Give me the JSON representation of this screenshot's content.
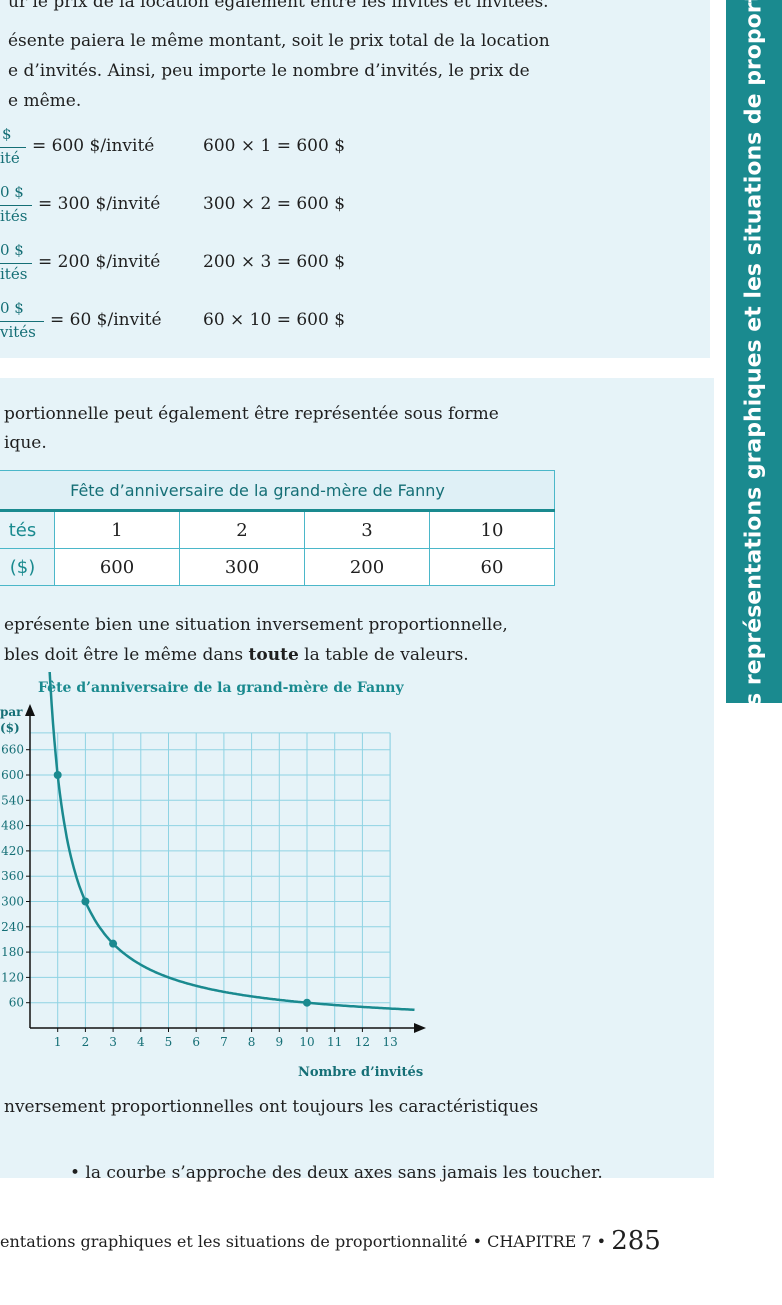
{
  "side_tab": "Les représentations graphiques et les situations de proportio",
  "top_text": {
    "line0": "ur le prix de la location également entre les invités et invitées.",
    "line1": "ésente paiera le même montant, soit le prix total de la location",
    "line2": "e d’invités. Ainsi, peu importe le nombre d’invités, le prix de",
    "line3": "e même."
  },
  "calculations": [
    {
      "num": "$",
      "den": "ité",
      "quotient": "= 600 $/invité",
      "product": "600 × 1 = 600 $"
    },
    {
      "num": "0 $",
      "den": "ités",
      "quotient": "= 300 $/invité",
      "product": "300 × 2 = 600 $"
    },
    {
      "num": "0 $",
      "den": "ités",
      "quotient": "= 200 $/invité",
      "product": "200 × 3 = 600 $"
    },
    {
      "num": "0 $",
      "den": "vités",
      "quotient": "= 60 $/invité",
      "product": "60 × 10 = 600 $"
    }
  ],
  "middle_text": {
    "line1": "portionnelle peut également être représentée sous forme",
    "line2": "ique."
  },
  "table": {
    "caption": "Fête d’anniversaire de la grand-mère de Fanny",
    "row1_label": "tés",
    "row2_label": "($)",
    "row1": [
      "1",
      "2",
      "3",
      "10"
    ],
    "row2": [
      "600",
      "300",
      "200",
      "60"
    ]
  },
  "after_table": {
    "line1": "eprésente bien une situation inversement proportionnelle,",
    "line2_a": "bles doit être le même dans ",
    "line2_bold": "toute",
    "line2_b": " la table de valeurs."
  },
  "chart_data": {
    "type": "line",
    "title": "Fête d’anniversaire de la grand-mère de Fanny",
    "ylabel_top": "par",
    "ylabel_unit": "($)",
    "xlabel": "Nombre d’invités",
    "x_ticks": [
      "1",
      "2",
      "3",
      "4",
      "5",
      "6",
      "7",
      "8",
      "9",
      "10",
      "11",
      "12",
      "13"
    ],
    "y_ticks": [
      "60",
      "120",
      "180",
      "240",
      "300",
      "360",
      "420",
      "480",
      "540",
      "600",
      "660"
    ],
    "y_tick_labels_visible": [
      "60",
      "120",
      "180",
      "240",
      "300",
      "360",
      "420",
      "480",
      "540",
      "600",
      "660"
    ],
    "xlim": [
      0,
      14
    ],
    "ylim": [
      0,
      720
    ],
    "grid": true,
    "points": [
      {
        "x": 1,
        "y": 600
      },
      {
        "x": 2,
        "y": 300
      },
      {
        "x": 3,
        "y": 200
      },
      {
        "x": 10,
        "y": 60
      }
    ],
    "curve": "y = 600 / x"
  },
  "bottom_text": {
    "line1": "nversement proportionnelles ont toujours les caractéristiques",
    "bullet": "• la courbe s’approche des deux axes sans jamais les toucher."
  },
  "footer": {
    "text": "entations graphiques et les situations de proportionnalité  •  CHAPITRE 7  • ",
    "page": "285"
  }
}
